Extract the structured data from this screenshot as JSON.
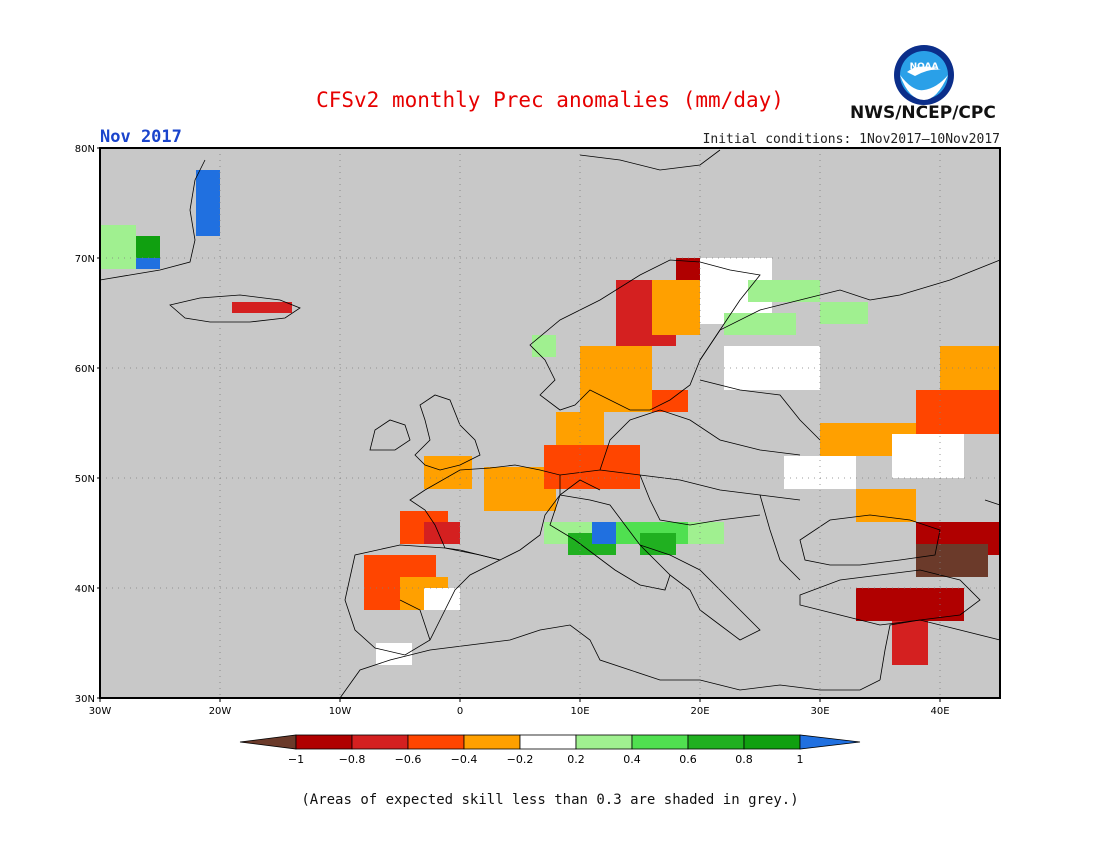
{
  "title": "CFSv2 monthly Prec anomalies (mm/day)",
  "month_label": "Nov 2017",
  "initial_conditions": "Initial conditions: 1Nov2017–10Nov2017",
  "agency": "NWS/NCEP/CPC",
  "logo_text": "NOAA",
  "footnote": "(Areas of expected skill less than 0.3 are shaded in grey.)",
  "colors": {
    "title": "#e60000",
    "month": "#1a44cc",
    "grey_mask": "#c8c8c8",
    "coast": "#000000",
    "grid": "#7f7f7f"
  },
  "axes": {
    "lat_labels": [
      "30N",
      "40N",
      "50N",
      "60N",
      "70N",
      "80N"
    ],
    "lat_values": [
      30,
      40,
      50,
      60,
      70,
      80
    ],
    "lon_labels": [
      "30W",
      "20W",
      "10W",
      "0",
      "10E",
      "20E",
      "30E",
      "40E"
    ],
    "lon_values": [
      -30,
      -20,
      -10,
      0,
      10,
      20,
      30,
      40
    ],
    "lon_range": [
      -30,
      45
    ],
    "lat_range": [
      30,
      80
    ]
  },
  "colorbar": {
    "labels": [
      "−1",
      "−0.8",
      "−0.6",
      "−0.4",
      "−0.2",
      "0.2",
      "0.4",
      "0.6",
      "0.8",
      "1"
    ],
    "colors": [
      "#6b3a2a",
      "#b00000",
      "#d42020",
      "#ff4500",
      "#ffa000",
      "#ffffff",
      "#a0f090",
      "#50e050",
      "#20b020",
      "#10a010",
      "#2070e0"
    ]
  },
  "anomaly_regions": [
    {
      "c": 3,
      "lon": [
        -8,
        -2
      ],
      "lat": [
        41,
        43
      ]
    },
    {
      "c": 3,
      "lon": [
        -5,
        -1
      ],
      "lat": [
        44,
        47
      ]
    },
    {
      "c": 4,
      "lon": [
        -3,
        1
      ],
      "lat": [
        49,
        52
      ]
    },
    {
      "c": 4,
      "lon": [
        2,
        8
      ],
      "lat": [
        47,
        51
      ]
    },
    {
      "c": 2,
      "lon": [
        -3,
        0
      ],
      "lat": [
        44,
        46
      ]
    },
    {
      "c": 3,
      "lon": [
        7,
        15
      ],
      "lat": [
        49,
        53
      ]
    },
    {
      "c": 4,
      "lon": [
        8,
        12
      ],
      "lat": [
        53,
        56
      ]
    },
    {
      "c": 4,
      "lon": [
        10,
        16
      ],
      "lat": [
        56,
        62
      ]
    },
    {
      "c": 2,
      "lon": [
        13,
        18
      ],
      "lat": [
        62,
        68
      ]
    },
    {
      "c": 4,
      "lon": [
        16,
        20
      ],
      "lat": [
        63,
        68
      ]
    },
    {
      "c": 1,
      "lon": [
        18,
        22
      ],
      "lat": [
        68,
        70
      ]
    },
    {
      "c": 5,
      "lon": [
        20,
        26
      ],
      "lat": [
        64,
        70
      ]
    },
    {
      "c": 5,
      "lon": [
        22,
        30
      ],
      "lat": [
        58,
        62
      ]
    },
    {
      "c": 6,
      "lon": [
        24,
        30
      ],
      "lat": [
        66,
        68
      ]
    },
    {
      "c": 5,
      "lon": [
        27,
        33
      ],
      "lat": [
        49,
        52
      ]
    },
    {
      "c": 4,
      "lon": [
        30,
        42
      ],
      "lat": [
        52,
        55
      ]
    },
    {
      "c": 3,
      "lon": [
        38,
        45
      ],
      "lat": [
        54,
        58
      ]
    },
    {
      "c": 4,
      "lon": [
        40,
        45
      ],
      "lat": [
        58,
        62
      ]
    },
    {
      "c": 5,
      "lon": [
        36,
        42
      ],
      "lat": [
        50,
        54
      ]
    },
    {
      "c": 4,
      "lon": [
        33,
        38
      ],
      "lat": [
        46,
        49
      ]
    },
    {
      "c": 1,
      "lon": [
        38,
        45
      ],
      "lat": [
        43,
        46
      ]
    },
    {
      "c": 0,
      "lon": [
        38,
        44
      ],
      "lat": [
        41,
        44
      ]
    },
    {
      "c": 1,
      "lon": [
        33,
        42
      ],
      "lat": [
        37,
        40
      ]
    },
    {
      "c": 2,
      "lon": [
        36,
        39
      ],
      "lat": [
        33,
        37
      ]
    },
    {
      "c": 3,
      "lon": [
        -8,
        -4
      ],
      "lat": [
        38,
        41
      ]
    },
    {
      "c": 4,
      "lon": [
        -5,
        -1
      ],
      "lat": [
        38,
        41
      ]
    },
    {
      "c": 5,
      "lon": [
        -3,
        0
      ],
      "lat": [
        38,
        40
      ]
    },
    {
      "c": 5,
      "lon": [
        -7,
        -4
      ],
      "lat": [
        33,
        35
      ]
    },
    {
      "c": 6,
      "lon": [
        7,
        11
      ],
      "lat": [
        44,
        46
      ]
    },
    {
      "c": 8,
      "lon": [
        9,
        13
      ],
      "lat": [
        43,
        45
      ]
    },
    {
      "c": 10,
      "lon": [
        11,
        13
      ],
      "lat": [
        44,
        46
      ]
    },
    {
      "c": 7,
      "lon": [
        13,
        19
      ],
      "lat": [
        44,
        46
      ]
    },
    {
      "c": 8,
      "lon": [
        15,
        18
      ],
      "lat": [
        43,
        45
      ]
    },
    {
      "c": 6,
      "lon": [
        19,
        22
      ],
      "lat": [
        44,
        46
      ]
    },
    {
      "c": 6,
      "lon": [
        22,
        28
      ],
      "lat": [
        63,
        65
      ]
    },
    {
      "c": 6,
      "lon": [
        30,
        34
      ],
      "lat": [
        64,
        66
      ]
    },
    {
      "c": 10,
      "lon": [
        -22,
        -20
      ],
      "lat": [
        72,
        78
      ]
    },
    {
      "c": 9,
      "lon": [
        -28,
        -25
      ],
      "lat": [
        70,
        72
      ]
    },
    {
      "c": 6,
      "lon": [
        -30,
        -27
      ],
      "lat": [
        69,
        73
      ]
    },
    {
      "c": 10,
      "lon": [
        -27,
        -25
      ],
      "lat": [
        69,
        70
      ]
    },
    {
      "c": 2,
      "lon": [
        -19,
        -14
      ],
      "lat": [
        65,
        66
      ]
    },
    {
      "c": 6,
      "lon": [
        6,
        8
      ],
      "lat": [
        61,
        63
      ]
    },
    {
      "c": 3,
      "lon": [
        16,
        19
      ],
      "lat": [
        56,
        58
      ]
    }
  ]
}
